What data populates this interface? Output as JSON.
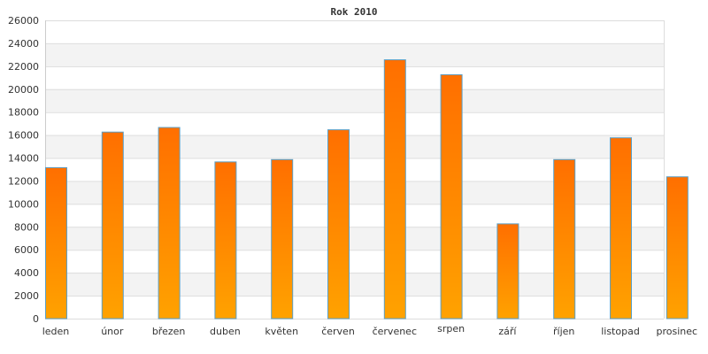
{
  "chart_data": {
    "type": "bar",
    "title": "Rok 2010",
    "xlabel": "",
    "ylabel": "",
    "categories": [
      "leden",
      "únor",
      "březen",
      "duben",
      "květen",
      "červen",
      "červenec",
      "srpen",
      "září",
      "říjen",
      "listopad",
      "prosinec"
    ],
    "values": [
      13200,
      16300,
      16700,
      13700,
      13900,
      16500,
      22600,
      21300,
      8300,
      13900,
      15800,
      12400
    ],
    "ylim": [
      0,
      26000
    ],
    "yticks": [
      "0",
      "2000",
      "4000",
      "6000",
      "8000",
      "10000",
      "12000",
      "14000",
      "16000",
      "18000",
      "20000",
      "22000",
      "24000",
      "26000"
    ],
    "grid": true,
    "legend": "none",
    "colors": {
      "bar_top": "#ff6f00",
      "bar_bottom": "#ffa200",
      "bar_border": "#5aa0c8",
      "band_alt": "#f3f3f3",
      "grid": "#dddddd",
      "axis": "#cccccc"
    }
  }
}
